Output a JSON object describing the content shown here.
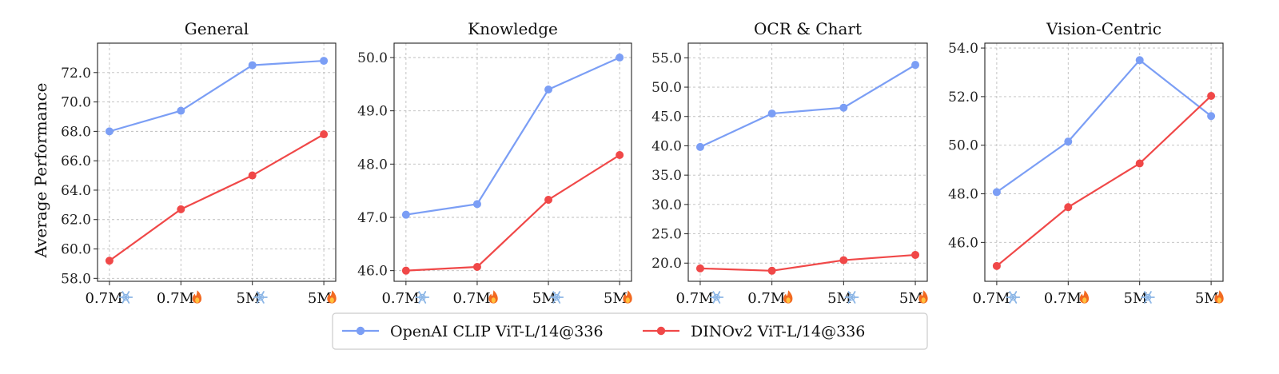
{
  "figure": {
    "ylabel": "Average Performance",
    "legend_placement": "bottom-center"
  },
  "colors": {
    "clip": "#7B9EF5",
    "dino": "#F04848",
    "grid": "#bdbdbd",
    "snow_icon": "#8CB6E6",
    "fire_icon": "#F26A21"
  },
  "legend": [
    {
      "label": "OpenAI CLIP ViT-L/14@336",
      "color": "#7B9EF5"
    },
    {
      "label": "DINOv2 ViT-L/14@336",
      "color": "#F04848"
    }
  ],
  "xticks": [
    {
      "text": "0.7M",
      "icon": "snowflake-icon"
    },
    {
      "text": "0.7M",
      "icon": "fire-icon"
    },
    {
      "text": "5M",
      "icon": "snowflake-icon"
    },
    {
      "text": "5M",
      "icon": "fire-icon"
    }
  ],
  "chart_data": [
    {
      "type": "line",
      "title": "General",
      "categories": [
        "0.7M ❄",
        "0.7M 🔥",
        "5M ❄",
        "5M 🔥"
      ],
      "ylim": [
        57.8,
        74.0
      ],
      "yticks": [
        58.0,
        60.0,
        62.0,
        64.0,
        66.0,
        68.0,
        70.0,
        72.0
      ],
      "ytick_labels": [
        "58.0",
        "60.0",
        "62.0",
        "64.0",
        "66.0",
        "68.0",
        "70.0",
        "72.0"
      ],
      "grid": true,
      "series": [
        {
          "name": "OpenAI CLIP ViT-L/14@336",
          "values": [
            68.0,
            69.4,
            72.5,
            72.8
          ]
        },
        {
          "name": "DINOv2 ViT-L/14@336",
          "values": [
            59.2,
            62.7,
            65.0,
            67.8
          ]
        }
      ]
    },
    {
      "type": "line",
      "title": "Knowledge",
      "categories": [
        "0.7M ❄",
        "0.7M 🔥",
        "5M ❄",
        "5M 🔥"
      ],
      "ylim": [
        45.8,
        50.27
      ],
      "yticks": [
        46.0,
        47.0,
        48.0,
        49.0,
        50.0
      ],
      "ytick_labels": [
        "46.0",
        "47.0",
        "48.0",
        "49.0",
        "50.0"
      ],
      "grid": true,
      "series": [
        {
          "name": "OpenAI CLIP ViT-L/14@336",
          "values": [
            47.05,
            47.25,
            49.4,
            50.0
          ]
        },
        {
          "name": "DINOv2 ViT-L/14@336",
          "values": [
            46.0,
            46.07,
            47.33,
            48.17
          ]
        }
      ]
    },
    {
      "type": "line",
      "title": "OCR & Chart",
      "categories": [
        "0.7M ❄",
        "0.7M 🔥",
        "5M ❄",
        "5M 🔥"
      ],
      "ylim": [
        16.9,
        57.5
      ],
      "yticks": [
        20.0,
        25.0,
        30.0,
        35.0,
        40.0,
        45.0,
        50.0,
        55.0
      ],
      "ytick_labels": [
        "20.0",
        "25.0",
        "30.0",
        "35.0",
        "40.0",
        "45.0",
        "50.0",
        "55.0"
      ],
      "grid": true,
      "series": [
        {
          "name": "OpenAI CLIP ViT-L/14@336",
          "values": [
            39.8,
            45.5,
            46.5,
            53.8
          ]
        },
        {
          "name": "DINOv2 ViT-L/14@336",
          "values": [
            19.1,
            18.7,
            20.5,
            21.4
          ]
        }
      ]
    },
    {
      "type": "line",
      "title": "Vision-Centric",
      "categories": [
        "0.7M ❄",
        "0.7M 🔥",
        "5M ❄",
        "5M 🔥"
      ],
      "ylim": [
        44.4,
        54.2
      ],
      "yticks": [
        46.0,
        48.0,
        50.0,
        52.0,
        54.0
      ],
      "ytick_labels": [
        "46.0",
        "48.0",
        "50.0",
        "52.0",
        "54.0"
      ],
      "grid": true,
      "series": [
        {
          "name": "OpenAI CLIP ViT-L/14@336",
          "values": [
            48.07,
            50.15,
            53.5,
            51.2
          ]
        },
        {
          "name": "DINOv2 ViT-L/14@336",
          "values": [
            45.03,
            47.45,
            49.25,
            52.03
          ]
        }
      ]
    }
  ]
}
